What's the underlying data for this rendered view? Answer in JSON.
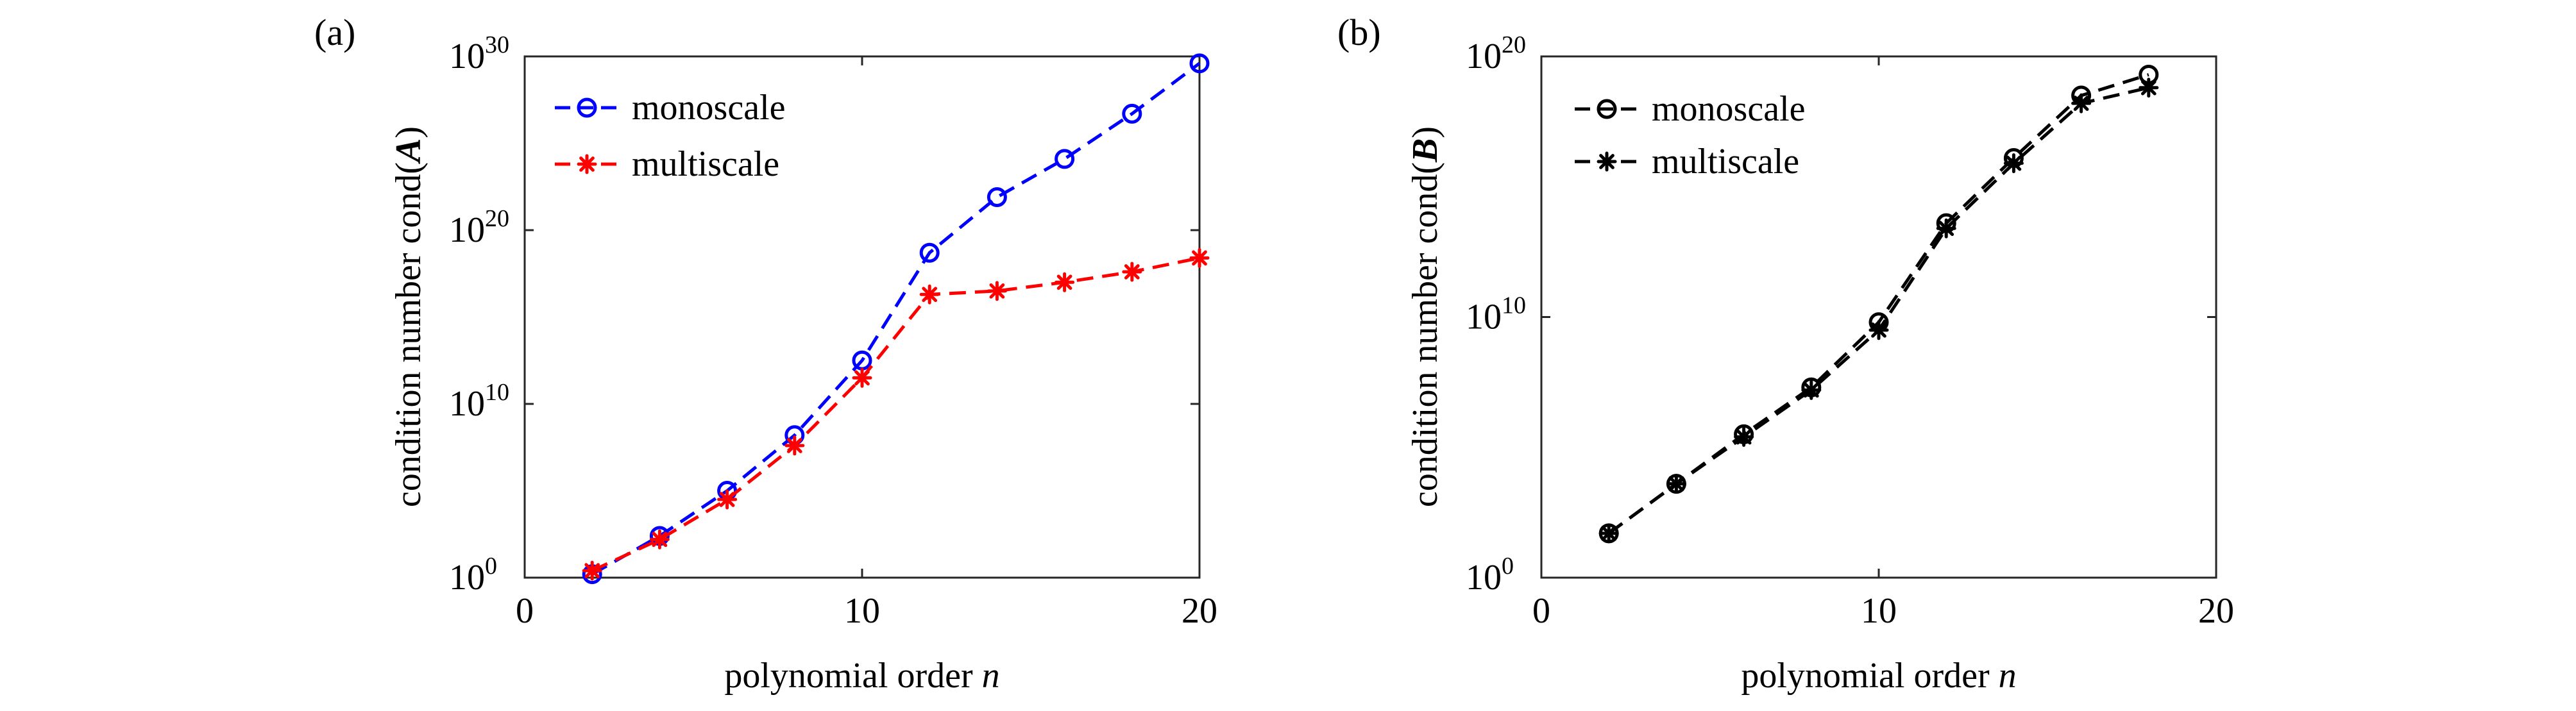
{
  "chart_data": [
    {
      "type": "line",
      "panel_label": "(a)",
      "xlabel_prefix": "polynomial order ",
      "xlabel_var": "n",
      "ylabel_prefix": "condition number cond(",
      "ylabel_var": "A",
      "ylabel_suffix": ")",
      "xlim": [
        0,
        20
      ],
      "xticks": [
        0,
        10,
        20
      ],
      "xtick_labels": [
        "0",
        "10",
        "20"
      ],
      "ylog": true,
      "ylim_exp": [
        0,
        30
      ],
      "yticks_exp": [
        0,
        10,
        20,
        30
      ],
      "ytick_labels": [
        {
          "base": "10",
          "exp": "0"
        },
        {
          "base": "10",
          "exp": "10"
        },
        {
          "base": "10",
          "exp": "20"
        },
        {
          "base": "10",
          "exp": "30"
        }
      ],
      "legend_position": "top-left",
      "series": [
        {
          "name": "monoscale",
          "color": "#0000ff",
          "marker": "circle",
          "x": [
            2,
            4,
            6,
            8,
            10,
            12,
            14,
            16,
            18,
            20
          ],
          "log10_y": [
            0.2,
            2.4,
            5.0,
            8.2,
            12.5,
            18.7,
            21.9,
            24.1,
            26.7,
            29.6
          ]
        },
        {
          "name": "multiscale",
          "color": "#ff0000",
          "marker": "asterisk",
          "x": [
            2,
            4,
            6,
            8,
            10,
            12,
            14,
            16,
            18,
            20
          ],
          "log10_y": [
            0.4,
            2.2,
            4.5,
            7.6,
            11.5,
            16.3,
            16.5,
            17.0,
            17.6,
            18.4
          ]
        }
      ]
    },
    {
      "type": "line",
      "panel_label": "(b)",
      "xlabel_prefix": "polynomial order ",
      "xlabel_var": "n",
      "ylabel_prefix": "condition number cond(",
      "ylabel_var": "B",
      "ylabel_suffix": ")",
      "xlim": [
        0,
        20
      ],
      "xticks": [
        0,
        10,
        20
      ],
      "xtick_labels": [
        "0",
        "10",
        "20"
      ],
      "ylog": true,
      "ylim_exp": [
        0,
        20
      ],
      "yticks_exp": [
        0,
        10,
        20
      ],
      "ytick_labels": [
        {
          "base": "10",
          "exp": "0"
        },
        {
          "base": "10",
          "exp": "10"
        },
        {
          "base": "10",
          "exp": "20"
        }
      ],
      "legend_position": "top-left",
      "series": [
        {
          "name": "monoscale",
          "color": "#000000",
          "marker": "circle",
          "x": [
            2,
            4,
            6,
            8,
            10,
            12,
            14,
            16,
            18
          ],
          "log10_y": [
            1.7,
            3.6,
            5.5,
            7.3,
            9.8,
            13.6,
            16.1,
            18.5,
            19.3
          ]
        },
        {
          "name": "multiscale",
          "color": "#000000",
          "marker": "asterisk",
          "x": [
            2,
            4,
            6,
            8,
            10,
            12,
            14,
            16,
            18
          ],
          "log10_y": [
            1.7,
            3.6,
            5.4,
            7.2,
            9.5,
            13.4,
            15.9,
            18.2,
            18.8
          ]
        }
      ]
    }
  ]
}
